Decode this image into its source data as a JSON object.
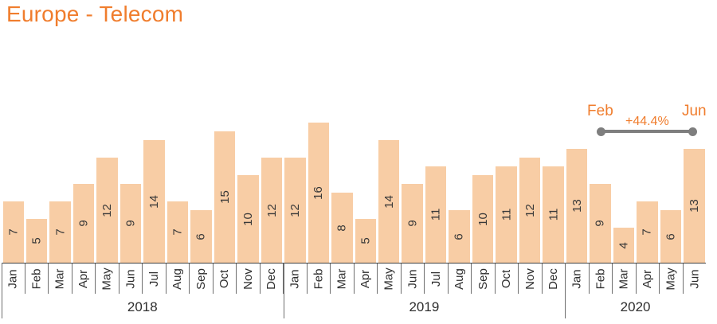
{
  "title": "Europe - Telecom",
  "colors": {
    "accent": "#F07D2D",
    "bar_fill": "#F8CDA5",
    "annotation_line": "#7E7E7E",
    "label_text": "#383838",
    "axis_line": "#3F3F3F"
  },
  "chart_data": {
    "type": "bar",
    "title": "Europe - Telecom",
    "categories": [
      "Jan",
      "Feb",
      "Mar",
      "Apr",
      "May",
      "Jun",
      "Jul",
      "Aug",
      "Sep",
      "Oct",
      "Nov",
      "Dec",
      "Jan",
      "Feb",
      "Mar",
      "Apr",
      "May",
      "Jun",
      "Jul",
      "Aug",
      "Sep",
      "Oct",
      "Nov",
      "Dec",
      "Jan",
      "Feb",
      "Mar",
      "Apr",
      "May",
      "Jun"
    ],
    "values": [
      7,
      5,
      7,
      9,
      12,
      9,
      14,
      7,
      6,
      15,
      10,
      12,
      12,
      16,
      8,
      5,
      14,
      9,
      11,
      6,
      10,
      11,
      12,
      11,
      13,
      9,
      4,
      7,
      6,
      13
    ],
    "year_groups": [
      {
        "label": "2018",
        "span": 12
      },
      {
        "label": "2019",
        "span": 12
      },
      {
        "label": "2020",
        "span": 6
      }
    ],
    "value_labels_shown": true,
    "xlabel": "",
    "ylabel": "",
    "ylim": [
      0,
      17
    ],
    "grid": false,
    "legend": false,
    "annotation": {
      "start_label": "Feb",
      "end_label": "Jun",
      "delta_label": "+44.4%",
      "start_index": 25,
      "end_index": 29
    }
  }
}
